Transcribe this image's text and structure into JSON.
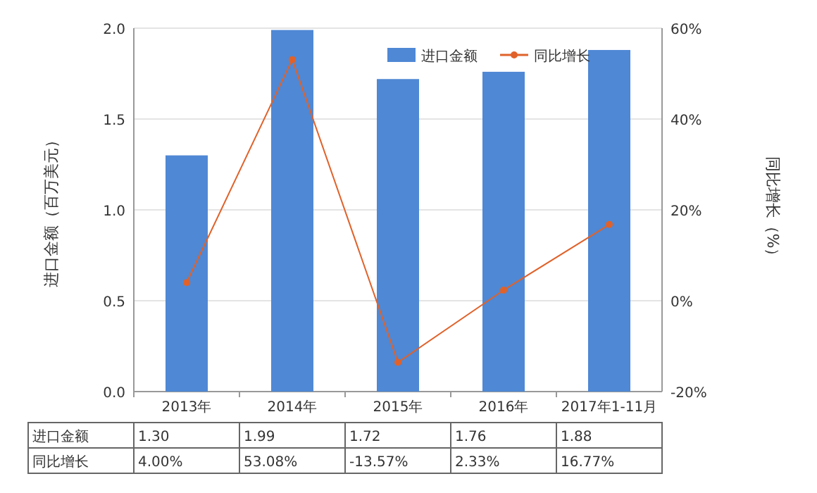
{
  "chart_data": {
    "type": "bar",
    "categories": [
      "2013年",
      "2014年",
      "2015年",
      "2016年",
      "2017年1-11月"
    ],
    "series": [
      {
        "name": "进口金额",
        "color": "#4f88d4",
        "values": [
          1.3,
          1.99,
          1.72,
          1.76,
          1.88
        ],
        "value_labels": [
          "1.30",
          "1.99",
          "1.72",
          "1.76",
          "1.88"
        ]
      },
      {
        "name": "同比增长",
        "type": "line",
        "axis": "y2",
        "color": "#e0622a",
        "marker": "circle",
        "values": [
          4.0,
          53.08,
          -13.57,
          2.33,
          16.77
        ],
        "value_labels": [
          "4.00%",
          "53.08%",
          "-13.57%",
          "2.33%",
          "16.77%"
        ]
      }
    ],
    "ylabel": "进口金额（百万美元）",
    "y2label": "同比增长（%）",
    "ylim": [
      0,
      2
    ],
    "yticks": [
      {
        "value": 0,
        "label": "0.0"
      },
      {
        "value": 0.5,
        "label": "0.5"
      },
      {
        "value": 1,
        "label": "1.0"
      },
      {
        "value": 1.5,
        "label": "1.5"
      },
      {
        "value": 2,
        "label": "2.0"
      }
    ],
    "y2lim": [
      -20,
      60
    ],
    "y2ticks": [
      {
        "value": -20,
        "label": "-20%"
      },
      {
        "value": 0,
        "label": "0%"
      },
      {
        "value": 20,
        "label": "20%"
      },
      {
        "value": 40,
        "label": "40%"
      },
      {
        "value": 60,
        "label": "60%"
      }
    ],
    "grid": "y",
    "legend": "top right"
  }
}
